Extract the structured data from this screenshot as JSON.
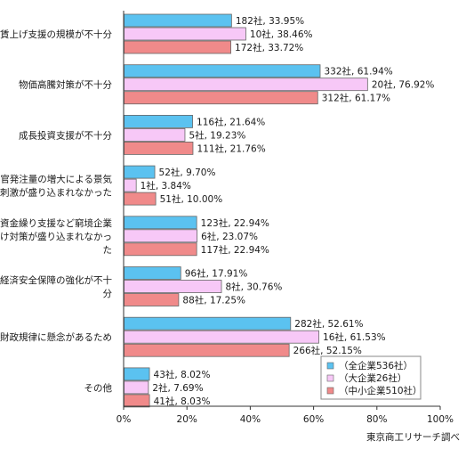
{
  "chart_data": {
    "type": "bar",
    "orientation": "horizontal",
    "categories": [
      [
        "賃上げ支援の規模が不十分"
      ],
      [
        "物価高騰対策が不十分"
      ],
      [
        "成長投資支援が不十分"
      ],
      [
        "官発注量の増大による景気",
        "刺激が盛り込まれなかった"
      ],
      [
        "資金繰り支援など窮境企業",
        "向け対策が盛り込まれなかっ",
        "た"
      ],
      [
        "経済安全保障の強化が不十",
        "分"
      ],
      [
        "財政規律に懸念があるため"
      ],
      [
        "その他"
      ]
    ],
    "series": [
      {
        "name": "（全企業536社）",
        "color": "#5bc2f0",
        "values": [
          33.95,
          61.94,
          21.64,
          9.7,
          22.94,
          17.91,
          52.61,
          8.02
        ],
        "labels": [
          "182社, 33.95%",
          "332社, 61.94%",
          "116社, 21.64%",
          "52社, 9.70%",
          "123社, 22.94%",
          "96社, 17.91%",
          "282社, 52.61%",
          "43社, 8.02%"
        ]
      },
      {
        "name": "（大企業26社）",
        "color": "#f7c8f7",
        "values": [
          38.46,
          76.92,
          19.23,
          3.84,
          23.07,
          30.76,
          61.53,
          7.69
        ],
        "labels": [
          "10社, 38.46%",
          "20社, 76.92%",
          "5社, 19.23%",
          "1社, 3.84%",
          "6社, 23.07%",
          "8社, 30.76%",
          "16社, 61.53%",
          "2社, 7.69%"
        ]
      },
      {
        "name": "（中小企業510社）",
        "color": "#f08a8a",
        "values": [
          33.72,
          61.17,
          21.76,
          10.0,
          22.94,
          17.25,
          52.15,
          8.03
        ],
        "labels": [
          "172社, 33.72%",
          "312社, 61.17%",
          "111社, 21.76%",
          "51社, 10.00%",
          "117社, 22.94%",
          "88社, 17.25%",
          "266社, 52.15%",
          "41社, 8.03%"
        ]
      }
    ],
    "xlim": [
      0,
      100
    ],
    "xticks": [
      "0%",
      "20%",
      "40%",
      "60%",
      "80%",
      "100%"
    ],
    "legend_position": "bottom-right",
    "grid": false,
    "source": "東京商工リサーチ調べ"
  }
}
